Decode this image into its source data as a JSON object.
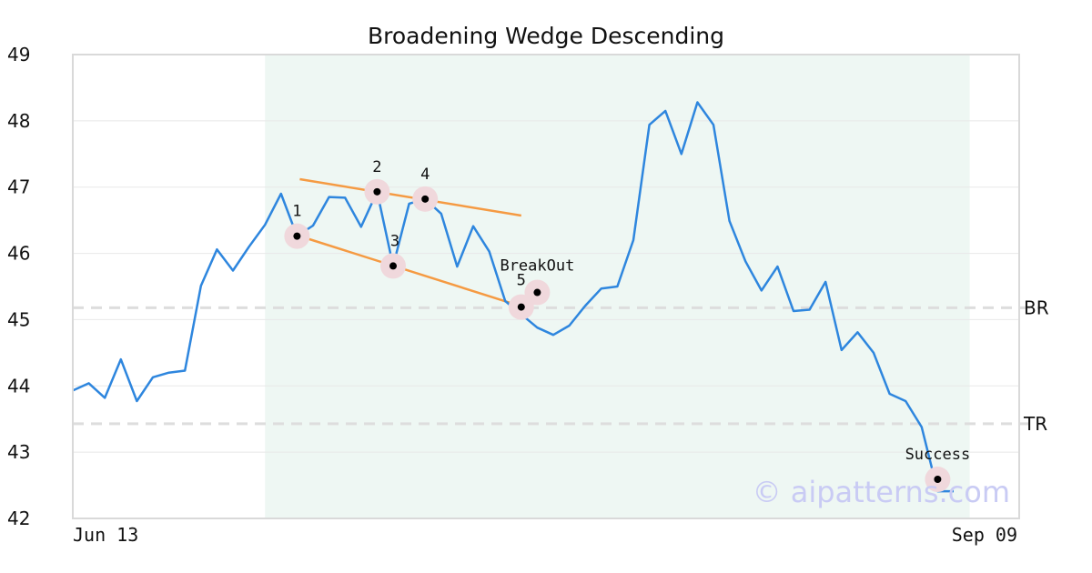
{
  "chart_data": {
    "type": "line",
    "title": "Broadening Wedge Descending",
    "xlabel": "",
    "ylabel": "",
    "ylim": [
      42,
      49
    ],
    "yticks": [
      "42",
      "43",
      "44",
      "45",
      "46",
      "47",
      "48",
      "49"
    ],
    "xtick_labels": [
      "Jun 13",
      "Sep 09"
    ],
    "grid": "horizontal",
    "colors": {
      "series": "#2e86de",
      "trendline": "#f59a42",
      "pattern_region": "#eef7f3",
      "level_line": "#dddddd",
      "marker_halo": "#f0d8dc",
      "watermark": "#c9cbf4"
    },
    "pattern_region": {
      "start_index": 12,
      "end_index": 56
    },
    "series": [
      {
        "values": [
          43.93,
          44.04,
          43.82,
          44.4,
          43.77,
          44.13,
          44.2,
          44.23,
          45.51,
          46.06,
          45.74,
          46.1,
          46.43,
          46.9,
          46.26,
          46.42,
          46.85,
          46.84,
          46.4,
          46.93,
          45.81,
          46.75,
          46.82,
          46.6,
          45.8,
          46.41,
          46.03,
          45.28,
          45.08,
          44.88,
          44.77,
          44.91,
          45.21,
          45.47,
          45.5,
          46.2,
          47.94,
          48.15,
          47.5,
          48.28,
          47.94,
          46.49,
          45.88,
          45.44,
          45.8,
          45.13,
          45.15,
          45.57,
          44.54,
          44.81,
          44.5,
          43.88,
          43.77,
          43.38,
          42.41,
          42.41
        ]
      }
    ],
    "trendlines": [
      {
        "x": [
          14,
          28
        ],
        "y": [
          46.26,
          45.2
        ]
      },
      {
        "x": [
          14,
          28
        ],
        "y": [
          47.12,
          46.57
        ]
      }
    ],
    "levels": [
      {
        "label": "BR",
        "value": 45.18
      },
      {
        "label": "TR",
        "value": 43.43
      }
    ],
    "points": [
      {
        "label": "1",
        "x": 14,
        "y": 46.26
      },
      {
        "label": "2",
        "x": 19,
        "y": 46.93
      },
      {
        "label": "3",
        "x": 20,
        "y": 45.81
      },
      {
        "label": "4",
        "x": 22,
        "y": 46.82
      },
      {
        "label": "5",
        "x": 28,
        "y": 45.19
      },
      {
        "label": "BreakOut",
        "x": 29,
        "y": 45.41
      },
      {
        "label": "Success",
        "x": 54,
        "y": 42.59
      }
    ],
    "watermark": "© aipatterns.com"
  }
}
